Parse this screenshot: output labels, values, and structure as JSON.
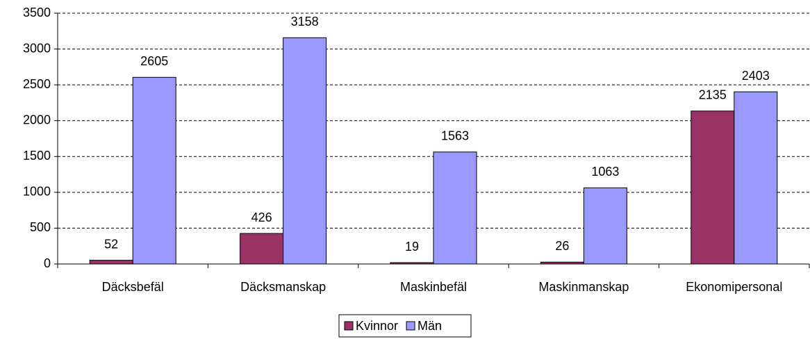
{
  "chart_data": {
    "type": "bar",
    "categories": [
      "Däcksbefäl",
      "Däcksmanskap",
      "Maskinbefäl",
      "Maskinmanskap",
      "Ekonomipersonal"
    ],
    "series": [
      {
        "name": "Kvinnor",
        "color": "#993366",
        "values": [
          52,
          426,
          19,
          26,
          2135
        ]
      },
      {
        "name": "Män",
        "color": "#9999ff",
        "values": [
          2605,
          3158,
          1563,
          1063,
          2403
        ]
      }
    ],
    "ylim": [
      0,
      3500
    ],
    "yticks": [
      0,
      500,
      1000,
      1500,
      2000,
      2500,
      3000,
      3500
    ],
    "grid": true,
    "legend": "bottom"
  }
}
